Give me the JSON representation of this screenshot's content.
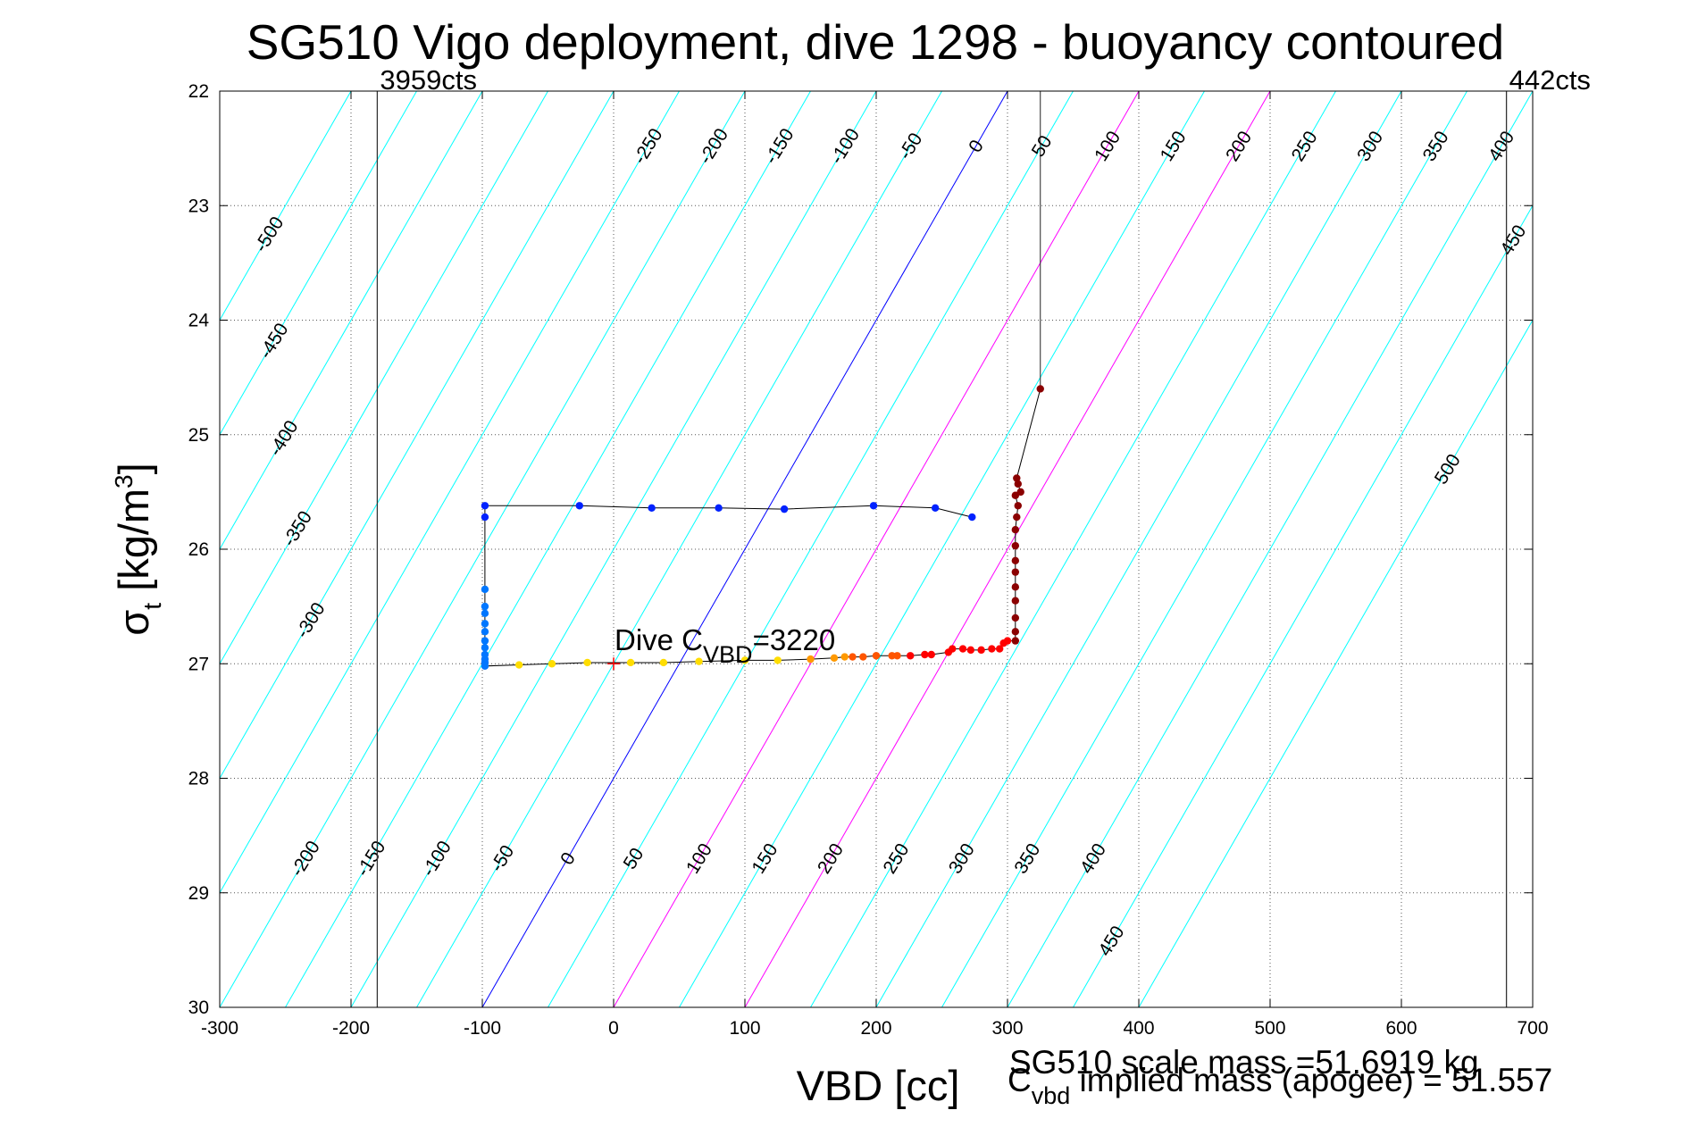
{
  "chart_data": {
    "type": "scatter",
    "title": "SG510 Vigo deployment, dive 1298 - buoyancy contoured",
    "xlabel": "VBD [cc]",
    "ylabel": {
      "main": "σ",
      "sub": "t",
      "rest": " [kg/m",
      "sup": "3",
      "end": "]"
    },
    "xlim": [
      -300,
      700
    ],
    "ylim": [
      22,
      30
    ],
    "y_reversed": true,
    "grid": true,
    "xticks": [
      -300,
      -200,
      -100,
      0,
      100,
      200,
      300,
      400,
      500,
      600,
      700
    ],
    "yticks": [
      22,
      23,
      24,
      25,
      26,
      27,
      28,
      29,
      30
    ],
    "vbd_limits": [
      {
        "x": -180,
        "label": "3959cts"
      },
      {
        "x": 680,
        "label": "442cts"
      }
    ],
    "vertical_annotation_line": {
      "x": 325,
      "y_from": 22,
      "y_to": 24.6
    },
    "contours": {
      "levels": [
        -500,
        -450,
        -400,
        -350,
        -300,
        -250,
        -200,
        -150,
        -100,
        -50,
        0,
        50,
        100,
        150,
        200,
        250,
        300,
        350,
        400,
        450,
        500
      ],
      "zero_x_at_sigma22": 300,
      "dx_per_sigma": -50,
      "zero_color": "#0000ff",
      "highlight_levels": [
        100,
        200
      ],
      "highlight_color": "#ff00ff",
      "default_color": "#00ffff",
      "top_labels": [
        "-500",
        "-450",
        "-400",
        "-350",
        "-300",
        "-250",
        "-200",
        "-150",
        "-100",
        "-50",
        "0",
        "50",
        "100",
        "150",
        "200",
        "250",
        "300",
        "350",
        "400",
        "450",
        "500"
      ],
      "bottom_labels": [
        "-200",
        "-150",
        "-100",
        "-50",
        "0",
        "50",
        "100",
        "150",
        "200",
        "250",
        "300",
        "350",
        "400",
        "450"
      ]
    },
    "dive_cvbd": {
      "x": 0,
      "y": 27.0,
      "prefix": "Dive C",
      "sub": "VBD",
      "suffix": "=3220"
    },
    "series": [
      {
        "color": "#8b0000",
        "points": [
          [
            325,
            24.6
          ],
          [
            307,
            25.38
          ],
          [
            308,
            25.43
          ],
          [
            310,
            25.5
          ],
          [
            306,
            25.53
          ],
          [
            308,
            25.62
          ],
          [
            307,
            25.72
          ],
          [
            306,
            25.83
          ],
          [
            306,
            25.97
          ],
          [
            306,
            26.1
          ],
          [
            306,
            26.2
          ],
          [
            306,
            26.33
          ],
          [
            306,
            26.45
          ],
          [
            306,
            26.6
          ],
          [
            306,
            26.72
          ],
          [
            306,
            26.8
          ]
        ]
      },
      {
        "color": "#ff0000",
        "points": [
          [
            300,
            26.8
          ],
          [
            297,
            26.82
          ],
          [
            294,
            26.87
          ],
          [
            288,
            26.87
          ],
          [
            280,
            26.88
          ],
          [
            272,
            26.88
          ],
          [
            266,
            26.87
          ],
          [
            258,
            26.87
          ],
          [
            255,
            26.9
          ],
          [
            242,
            26.92
          ],
          [
            237,
            26.92
          ],
          [
            226,
            26.93
          ]
        ]
      },
      {
        "color": "#ff5500",
        "points": [
          [
            216,
            26.93
          ],
          [
            212,
            26.93
          ],
          [
            200,
            26.93
          ],
          [
            190,
            26.94
          ],
          [
            182,
            26.94
          ]
        ]
      },
      {
        "color": "#ff9900",
        "points": [
          [
            176,
            26.94
          ],
          [
            168,
            26.95
          ],
          [
            150,
            26.96
          ]
        ]
      },
      {
        "color": "#ffdd00",
        "points": [
          [
            125,
            26.97
          ],
          [
            100,
            26.97
          ],
          [
            65,
            26.98
          ],
          [
            38,
            26.99
          ],
          [
            13,
            26.99
          ],
          [
            -20,
            26.99
          ],
          [
            -47,
            27.0
          ],
          [
            -72,
            27.01
          ]
        ]
      },
      {
        "color": "#0077ff",
        "points": [
          [
            -98,
            27.02
          ],
          [
            -98,
            26.99
          ],
          [
            -98,
            26.96
          ],
          [
            -98,
            26.92
          ],
          [
            -98,
            26.86
          ],
          [
            -98,
            26.8
          ],
          [
            -98,
            26.72
          ],
          [
            -98,
            26.65
          ],
          [
            -98,
            26.56
          ],
          [
            -98,
            26.5
          ],
          [
            -98,
            26.35
          ]
        ]
      },
      {
        "color": "#0022ff",
        "points": [
          [
            -98,
            25.72
          ],
          [
            -98,
            25.62
          ],
          [
            -26,
            25.62
          ],
          [
            29,
            25.64
          ],
          [
            80,
            25.64
          ],
          [
            130,
            25.65
          ],
          [
            198,
            25.62
          ],
          [
            245,
            25.64
          ],
          [
            273,
            25.72
          ]
        ]
      }
    ],
    "footer": {
      "left": "SG510 scale mass =51.6919 kg",
      "right_prefix": "C",
      "right_sub": "vbd",
      "right_rest": " implied mass (apogee) = 51.557"
    }
  }
}
